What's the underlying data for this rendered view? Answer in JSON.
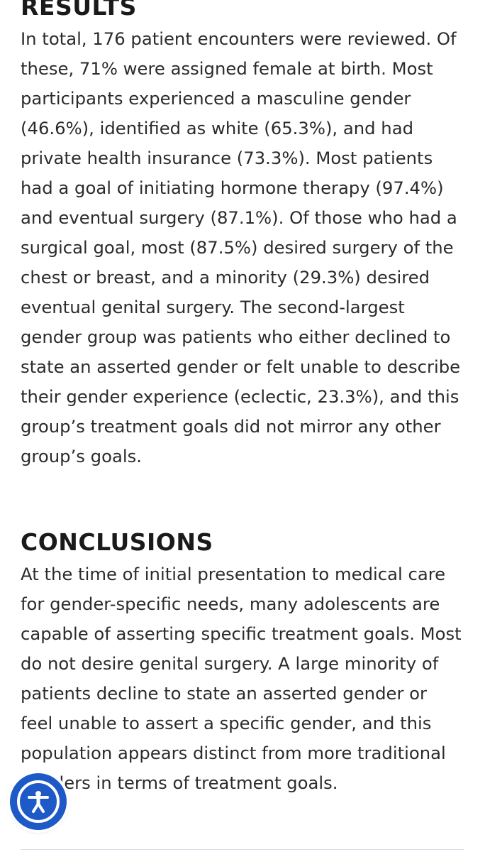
{
  "results": {
    "heading": "RESULTS",
    "body": "In total, 176 patient encounters were reviewed. Of these, 71% were assigned female at birth. Most participants experienced a masculine gender (46.6%), identified as white (65.3%), and had private health insurance (73.3%). Most patients had a goal of initiating hormone therapy (97.4%) and eventual surgery (87.1%). Of those who had a surgical goal, most (87.5%) desired surgery of the chest or breast, and a minority (29.3%) desired eventual genital surgery. The second-largest gender group was patients who either declined to state an asserted gender or felt unable to describe their gender experience (eclectic, 23.3%), and this group’s treatment goals did not mirror any other group’s goals."
  },
  "conclusions": {
    "heading": "CONCLUSIONS",
    "body": "At the time of initial presentation to medical care for gender-specific needs, many adolescents are capable of asserting specific treatment goals. Most do not desire genital surgery. A large minority of patients decline to state an asserted gender or feel unable to assert a specific gender, and this population appears distinct from more traditional genders in terms of treatment goals."
  },
  "accessibility_button": {
    "icon": "accessibility-icon",
    "color": "#1e59c8"
  }
}
